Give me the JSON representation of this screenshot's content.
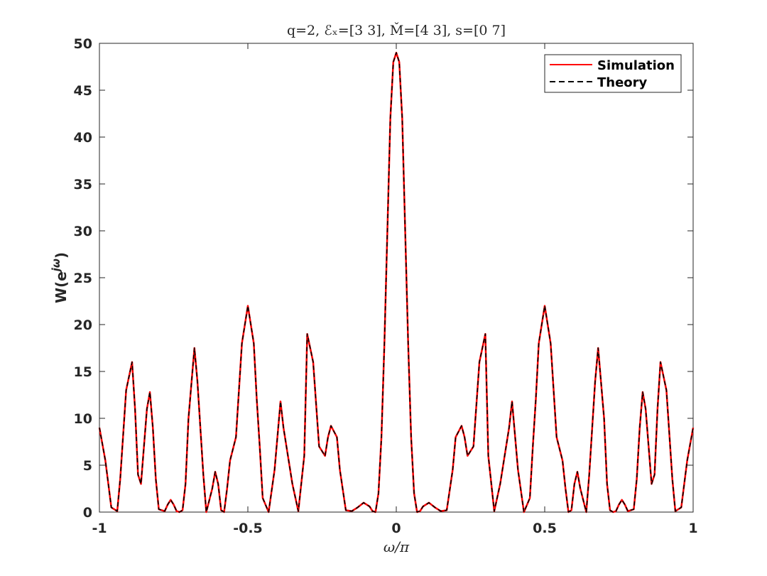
{
  "chart_data": {
    "type": "line",
    "title": "q=2, ℰₓ=[3 3], M̌=[4 3], s=[0 7]",
    "xlabel": "ω/π",
    "ylabel": "W(e^{jω})",
    "ylabel_base": "W(e",
    "ylabel_sup": "jω",
    "ylabel_close": ")",
    "xlim": [
      -1,
      1
    ],
    "ylim": [
      0,
      50
    ],
    "xticks": [
      -1,
      -0.5,
      0,
      0.5,
      1
    ],
    "xtick_labels": [
      "-1",
      "-0.5",
      "0",
      "0.5",
      "1"
    ],
    "yticks": [
      0,
      5,
      10,
      15,
      20,
      25,
      30,
      35,
      40,
      45,
      50
    ],
    "ytick_labels": [
      "0",
      "5",
      "10",
      "15",
      "20",
      "25",
      "30",
      "35",
      "40",
      "45",
      "50"
    ],
    "grid": false,
    "legend_position": "top-right",
    "series": [
      {
        "name": "Simulation",
        "color": "#ff0000",
        "style": "solid",
        "x": [
          -1.0,
          -0.98,
          -0.96,
          -0.94,
          -0.93,
          -0.91,
          -0.89,
          -0.88,
          -0.87,
          -0.86,
          -0.84,
          -0.83,
          -0.82,
          -0.81,
          -0.8,
          -0.78,
          -0.77,
          -0.76,
          -0.75,
          -0.74,
          -0.73,
          -0.72,
          -0.71,
          -0.7,
          -0.68,
          -0.67,
          -0.65,
          -0.64,
          -0.62,
          -0.61,
          -0.6,
          -0.59,
          -0.58,
          -0.57,
          -0.56,
          -0.54,
          -0.52,
          -0.5,
          -0.48,
          -0.47,
          -0.46,
          -0.45,
          -0.43,
          -0.41,
          -0.39,
          -0.38,
          -0.36,
          -0.35,
          -0.33,
          -0.31,
          -0.3,
          -0.28,
          -0.26,
          -0.24,
          -0.23,
          -0.22,
          -0.2,
          -0.19,
          -0.17,
          -0.15,
          -0.13,
          -0.11,
          -0.09,
          -0.08,
          -0.07,
          -0.06,
          -0.05,
          -0.04,
          -0.03,
          -0.02,
          -0.01,
          0.0,
          0.01,
          0.02,
          0.03,
          0.04,
          0.05,
          0.06,
          0.07,
          0.08,
          0.09,
          0.11,
          0.13,
          0.15,
          0.17,
          0.19,
          0.2,
          0.22,
          0.23,
          0.24,
          0.26,
          0.28,
          0.3,
          0.31,
          0.33,
          0.35,
          0.36,
          0.38,
          0.39,
          0.41,
          0.43,
          0.45,
          0.46,
          0.47,
          0.48,
          0.5,
          0.52,
          0.54,
          0.56,
          0.57,
          0.58,
          0.59,
          0.6,
          0.61,
          0.62,
          0.64,
          0.65,
          0.67,
          0.68,
          0.7,
          0.71,
          0.72,
          0.73,
          0.74,
          0.75,
          0.76,
          0.77,
          0.78,
          0.8,
          0.81,
          0.82,
          0.83,
          0.84,
          0.86,
          0.87,
          0.88,
          0.89,
          0.91,
          0.93,
          0.94,
          0.96,
          0.98,
          1.0
        ],
        "y": [
          9.0,
          5.5,
          0.5,
          0.1,
          3.5,
          13.0,
          16.0,
          11.0,
          4.0,
          3.0,
          11.0,
          12.8,
          9.0,
          3.5,
          0.3,
          0.1,
          0.8,
          1.3,
          0.8,
          0.1,
          0.0,
          0.2,
          3.0,
          10.0,
          17.5,
          14.0,
          4.0,
          0.0,
          2.5,
          4.3,
          3.0,
          0.2,
          0.0,
          2.5,
          5.5,
          8.0,
          18.0,
          22.0,
          18.0,
          12.0,
          7.0,
          1.5,
          0.0,
          4.5,
          11.8,
          9.0,
          5.0,
          3.0,
          0.1,
          6.0,
          19.0,
          16.0,
          7.0,
          6.0,
          8.0,
          9.2,
          8.0,
          4.5,
          0.2,
          0.1,
          0.5,
          1.0,
          0.6,
          0.1,
          0.0,
          2.0,
          8.0,
          18.0,
          30.0,
          42.0,
          48.0,
          49.0,
          48.0,
          42.0,
          30.0,
          18.0,
          8.0,
          2.0,
          0.0,
          0.1,
          0.6,
          1.0,
          0.5,
          0.1,
          0.2,
          4.5,
          8.0,
          9.2,
          8.0,
          6.0,
          7.0,
          16.0,
          19.0,
          6.0,
          0.1,
          3.0,
          5.0,
          9.0,
          11.8,
          4.5,
          0.0,
          1.5,
          7.0,
          12.0,
          18.0,
          22.0,
          18.0,
          8.0,
          5.5,
          2.5,
          0.0,
          0.2,
          3.0,
          4.3,
          2.5,
          0.0,
          4.0,
          14.0,
          17.5,
          10.0,
          3.0,
          0.2,
          0.0,
          0.1,
          0.8,
          1.3,
          0.8,
          0.1,
          0.3,
          3.5,
          9.0,
          12.8,
          11.0,
          3.0,
          4.0,
          11.0,
          16.0,
          13.0,
          3.5,
          0.1,
          0.5,
          5.5,
          9.0
        ]
      },
      {
        "name": "Theory",
        "color": "#000000",
        "style": "dashed",
        "x": [
          -1.0,
          -0.98,
          -0.96,
          -0.94,
          -0.93,
          -0.91,
          -0.89,
          -0.88,
          -0.87,
          -0.86,
          -0.84,
          -0.83,
          -0.82,
          -0.81,
          -0.8,
          -0.78,
          -0.77,
          -0.76,
          -0.75,
          -0.74,
          -0.73,
          -0.72,
          -0.71,
          -0.7,
          -0.68,
          -0.67,
          -0.65,
          -0.64,
          -0.62,
          -0.61,
          -0.6,
          -0.59,
          -0.58,
          -0.57,
          -0.56,
          -0.54,
          -0.52,
          -0.5,
          -0.48,
          -0.47,
          -0.46,
          -0.45,
          -0.43,
          -0.41,
          -0.39,
          -0.38,
          -0.36,
          -0.35,
          -0.33,
          -0.31,
          -0.3,
          -0.28,
          -0.26,
          -0.24,
          -0.23,
          -0.22,
          -0.2,
          -0.19,
          -0.17,
          -0.15,
          -0.13,
          -0.11,
          -0.09,
          -0.08,
          -0.07,
          -0.06,
          -0.05,
          -0.04,
          -0.03,
          -0.02,
          -0.01,
          0.0,
          0.01,
          0.02,
          0.03,
          0.04,
          0.05,
          0.06,
          0.07,
          0.08,
          0.09,
          0.11,
          0.13,
          0.15,
          0.17,
          0.19,
          0.2,
          0.22,
          0.23,
          0.24,
          0.26,
          0.28,
          0.3,
          0.31,
          0.33,
          0.35,
          0.36,
          0.38,
          0.39,
          0.41,
          0.43,
          0.45,
          0.46,
          0.47,
          0.48,
          0.5,
          0.52,
          0.54,
          0.56,
          0.57,
          0.58,
          0.59,
          0.6,
          0.61,
          0.62,
          0.64,
          0.65,
          0.67,
          0.68,
          0.7,
          0.71,
          0.72,
          0.73,
          0.74,
          0.75,
          0.76,
          0.77,
          0.78,
          0.8,
          0.81,
          0.82,
          0.83,
          0.84,
          0.86,
          0.87,
          0.88,
          0.89,
          0.91,
          0.93,
          0.94,
          0.96,
          0.98,
          1.0
        ],
        "y": [
          9.0,
          5.5,
          0.5,
          0.1,
          3.5,
          13.0,
          16.0,
          11.0,
          4.0,
          3.0,
          11.0,
          12.8,
          9.0,
          3.5,
          0.3,
          0.1,
          0.8,
          1.3,
          0.8,
          0.1,
          0.0,
          0.2,
          3.0,
          10.0,
          17.5,
          14.0,
          4.0,
          0.0,
          2.5,
          4.3,
          3.0,
          0.2,
          0.0,
          2.5,
          5.5,
          8.0,
          18.0,
          22.0,
          18.0,
          12.0,
          7.0,
          1.5,
          0.0,
          4.5,
          11.8,
          9.0,
          5.0,
          3.0,
          0.1,
          6.0,
          19.0,
          16.0,
          7.0,
          6.0,
          8.0,
          9.2,
          8.0,
          4.5,
          0.2,
          0.1,
          0.5,
          1.0,
          0.6,
          0.1,
          0.0,
          2.0,
          8.0,
          18.0,
          30.0,
          42.0,
          48.0,
          49.0,
          48.0,
          42.0,
          30.0,
          18.0,
          8.0,
          2.0,
          0.0,
          0.1,
          0.6,
          1.0,
          0.5,
          0.1,
          0.2,
          4.5,
          8.0,
          9.2,
          8.0,
          6.0,
          7.0,
          16.0,
          19.0,
          6.0,
          0.1,
          3.0,
          5.0,
          9.0,
          11.8,
          4.5,
          0.0,
          1.5,
          7.0,
          12.0,
          18.0,
          22.0,
          18.0,
          8.0,
          5.5,
          2.5,
          0.0,
          0.2,
          3.0,
          4.3,
          2.5,
          0.0,
          4.0,
          14.0,
          17.5,
          10.0,
          3.0,
          0.2,
          0.0,
          0.1,
          0.8,
          1.3,
          0.8,
          0.1,
          0.3,
          3.5,
          9.0,
          12.8,
          11.0,
          3.0,
          4.0,
          11.0,
          16.0,
          13.0,
          3.5,
          0.1,
          0.5,
          5.5,
          9.0
        ]
      }
    ]
  }
}
